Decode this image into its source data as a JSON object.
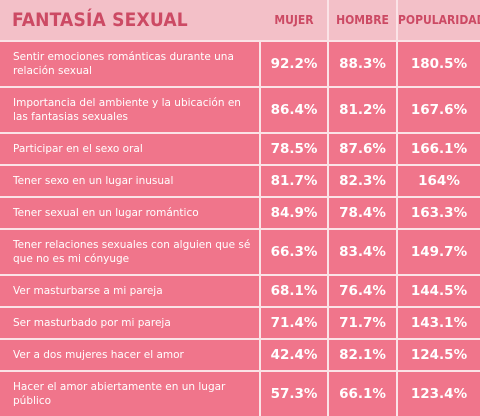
{
  "header": {
    "title": "FANTASÍA SEXUAL",
    "col_women": "MUJER",
    "col_men": "HOMBRE",
    "col_popularity": "POPULARIDAD"
  },
  "rows": [
    {
      "label": "Sentir emociones románticas durante una relación sexual",
      "mujer": "92.2%",
      "hombre": "88.3%",
      "popularidad": "180.5%"
    },
    {
      "label": "Importancia del ambiente y la ubicación en las fantasias sexuales",
      "mujer": "86.4%",
      "hombre": "81.2%",
      "popularidad": "167.6%"
    },
    {
      "label": "Participar en el sexo oral",
      "mujer": "78.5%",
      "hombre": "87.6%",
      "popularidad": "166.1%"
    },
    {
      "label": "Tener sexo en un lugar inusual",
      "mujer": "81.7%",
      "hombre": "82.3%",
      "popularidad": "164%"
    },
    {
      "label": "Tener sexual en un lugar romántico",
      "mujer": "84.9%",
      "hombre": "78.4%",
      "popularidad": "163.3%"
    },
    {
      "label": "Tener relaciones sexuales con alguien que sé que no es mi cónyuge",
      "mujer": "66.3%",
      "hombre": "83.4%",
      "popularidad": "149.7%"
    },
    {
      "label": "Ver masturbarse a mi pareja",
      "mujer": "68.1%",
      "hombre": "76.4%",
      "popularidad": "144.5%"
    },
    {
      "label": "Ser masturbado por mi pareja",
      "mujer": "71.4%",
      "hombre": "71.7%",
      "popularidad": "143.1%"
    },
    {
      "label": "Ver a dos mujeres hacer el amor",
      "mujer": "42.4%",
      "hombre": "82.1%",
      "popularidad": "124.5%"
    },
    {
      "label": "Hacer el amor abiertamente en un lugar público",
      "mujer": "57.3%",
      "hombre": "66.1%",
      "popularidad": "123.4%"
    }
  ]
}
